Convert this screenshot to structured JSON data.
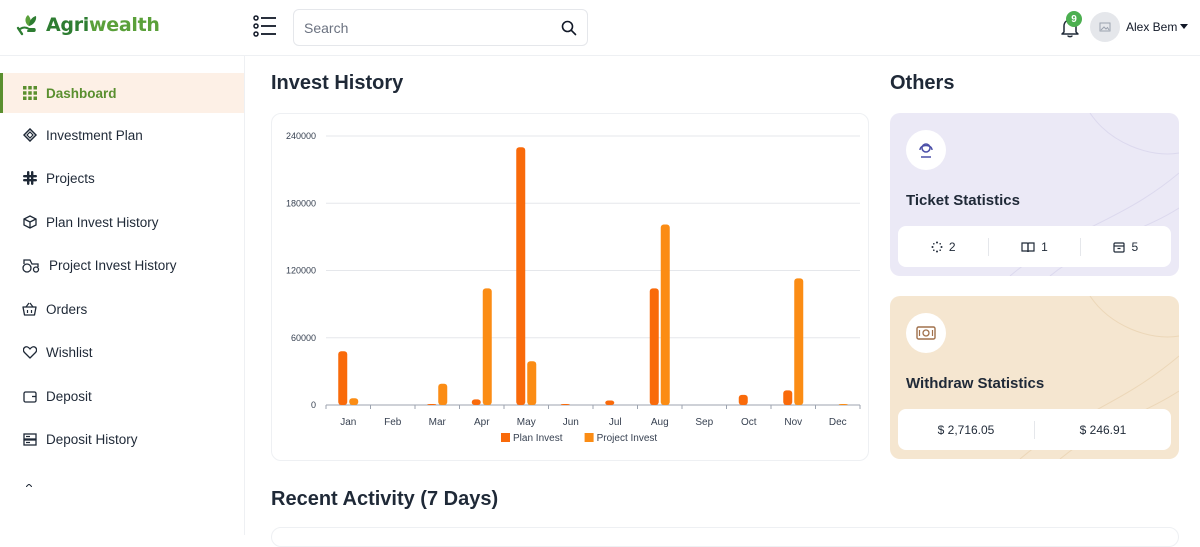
{
  "header": {
    "logo_text": "Agri",
    "logo_text_accent": "wealth",
    "search_placeholder": "Search",
    "notification_count": "9",
    "user_name": "Alex Bem"
  },
  "sidebar": {
    "items": [
      {
        "label": "Dashboard",
        "icon": "grid-icon",
        "active": true
      },
      {
        "label": "Investment Plan",
        "icon": "layers-icon"
      },
      {
        "label": "Projects",
        "icon": "slack-icon"
      },
      {
        "label": "Plan Invest History",
        "icon": "box-icon"
      },
      {
        "label": "Project Invest History",
        "icon": "tractor-icon"
      },
      {
        "label": "Orders",
        "icon": "basket-icon"
      },
      {
        "label": "Wishlist",
        "icon": "heart-icon"
      },
      {
        "label": "Deposit",
        "icon": "wallet-icon"
      },
      {
        "label": "Deposit History",
        "icon": "server-icon"
      }
    ]
  },
  "main": {
    "invest_history_title": "Invest History",
    "others_title": "Others",
    "recent_activity_title": "Recent Activity (7 Days)"
  },
  "others": {
    "ticket": {
      "title": "Ticket Statistics",
      "pending": "2",
      "open": "1",
      "closed": "5",
      "bg": "#ebe9f6"
    },
    "withdraw": {
      "title": "Withdraw Statistics",
      "amount_1": "$ 2,716.05",
      "amount_2": "$ 246.91",
      "bg": "#f5e6d0"
    }
  },
  "chart_data": {
    "type": "bar",
    "categories": [
      "Jan",
      "Feb",
      "Mar",
      "Apr",
      "May",
      "Jun",
      "Jul",
      "Aug",
      "Sep",
      "Oct",
      "Nov",
      "Dec"
    ],
    "series": [
      {
        "name": "Plan Invest",
        "color": "#f96a0a",
        "values": [
          48000,
          0,
          500,
          5000,
          230000,
          500,
          4000,
          104000,
          0,
          9000,
          13000,
          0
        ]
      },
      {
        "name": "Project Invest",
        "color": "#fb8c14",
        "values": [
          6000,
          0,
          19000,
          104000,
          39000,
          0,
          0,
          161000,
          0,
          0,
          113000,
          500
        ]
      }
    ],
    "yticks": [
      "0",
      "60000",
      "120000",
      "180000",
      "240000"
    ],
    "ylim": [
      0,
      240000
    ],
    "grid": true,
    "legend": "bottom"
  }
}
